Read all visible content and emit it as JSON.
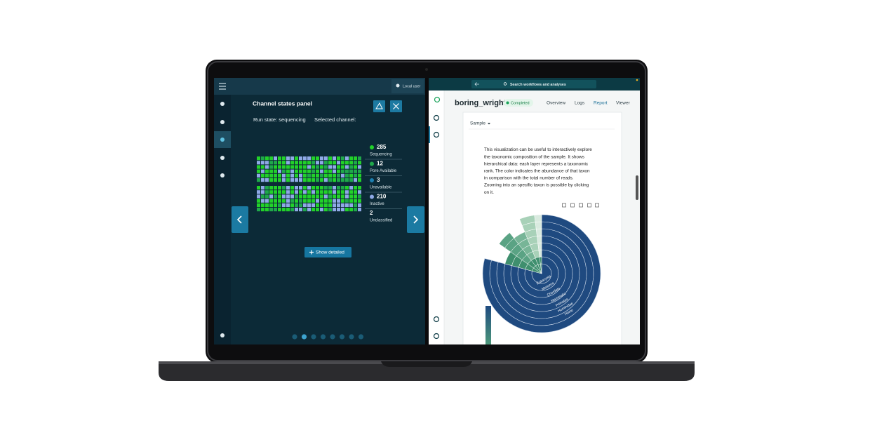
{
  "left_panel": {
    "user": "Local user",
    "title": "Channel states panel",
    "run_state": "Run state: sequencing",
    "selected_channel": "Selected channel:",
    "legend": [
      {
        "count": 285,
        "label": "Sequencing",
        "color": "#22d12a"
      },
      {
        "count": 12,
        "label": "Pore Available",
        "color": "#1fa84a"
      },
      {
        "count": 3,
        "label": "Unavailable",
        "color": "#1d7fb0"
      },
      {
        "count": 210,
        "label": "Inactive",
        "color": "#8fa9e6"
      },
      {
        "count": 2,
        "label": "Unclassified",
        "color": null
      }
    ],
    "button": "Show detailed"
  },
  "right_panel": {
    "search": "Search workflows and analyses",
    "run_name": "boring_wright",
    "status": "Completed",
    "tabs": [
      "Overview",
      "Logs",
      "Report",
      "Viewer"
    ],
    "dropdown": "Sample",
    "description": [
      "This visualization can be useful to interactively explore",
      "the taxonomic composition of the sample. It shows",
      "hierarchical data: each layer represents a taxonomic",
      "rank. The color indicates the abundance of that taxon",
      "in comparison with the total number of reads.",
      "Zooming into an specific taxon is possible by clicking",
      "on it."
    ],
    "sunburst_labels": [
      "Eukaryota",
      "Metazoa",
      "Chordata",
      "Mammalia",
      "Primates",
      "Hominidae",
      "Homo",
      "Homo sapiens"
    ]
  }
}
